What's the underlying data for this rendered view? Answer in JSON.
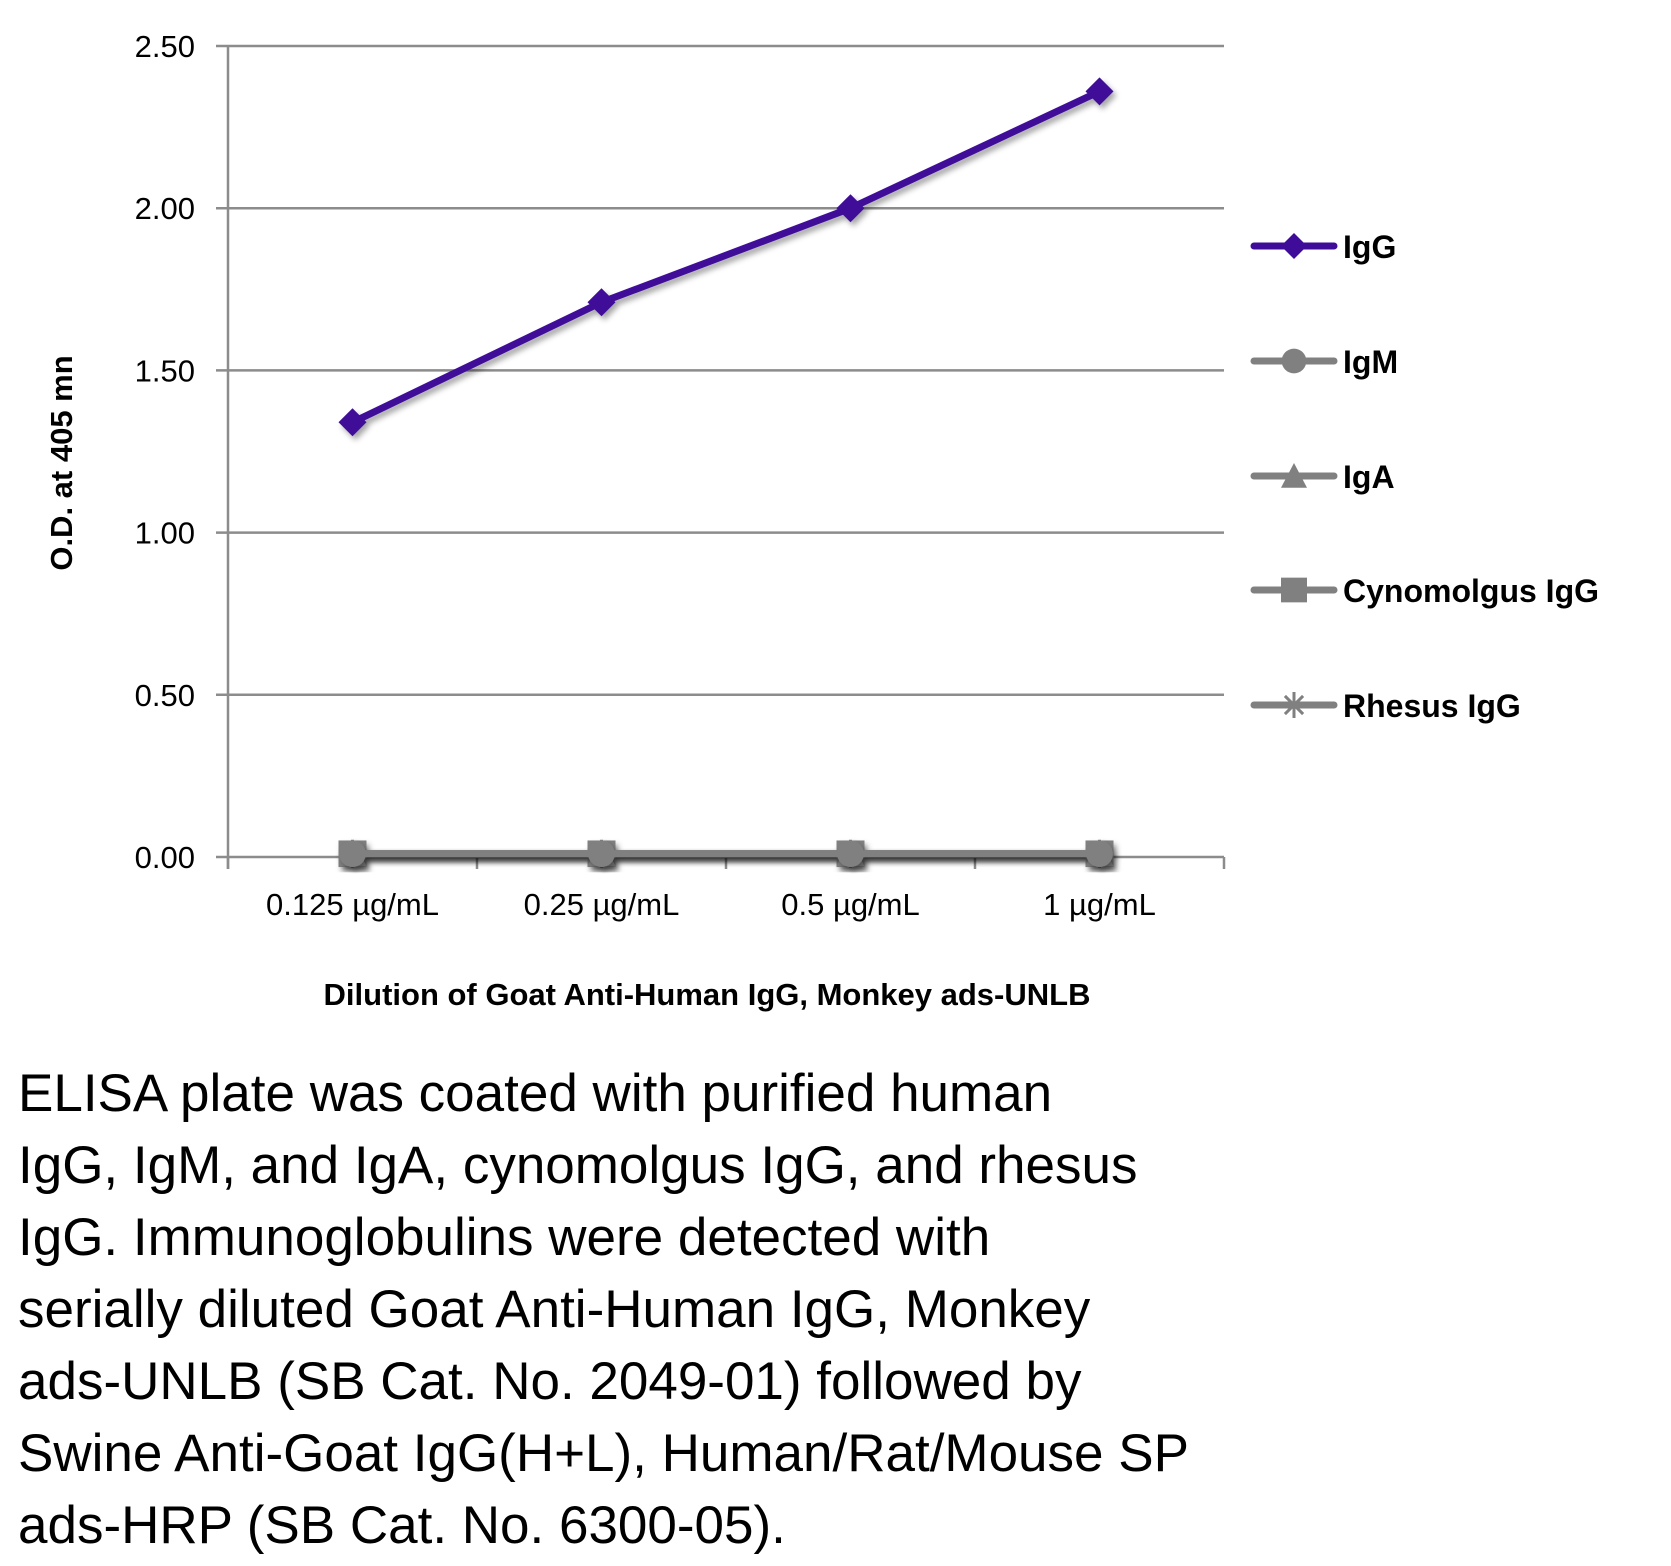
{
  "chart_data": {
    "type": "line",
    "title": "",
    "xlabel": "Dilution of Goat Anti-Human IgG, Monkey ads-UNLB",
    "ylabel": "O.D. at 405 mn",
    "categories": [
      "0.125 µg/mL",
      "0.25 µg/mL",
      "0.5 µg/mL",
      "1 µg/mL"
    ],
    "ylim": [
      0,
      2.5
    ],
    "yticks": [
      "0.00",
      "0.50",
      "1.00",
      "1.50",
      "2.00",
      "2.50"
    ],
    "grid": true,
    "legend_position": "right",
    "series": [
      {
        "name": "IgG",
        "marker": "diamond",
        "color": "#3f0c99",
        "values": [
          1.34,
          1.71,
          2.0,
          2.36
        ]
      },
      {
        "name": "IgM",
        "marker": "circle",
        "color": "#808080",
        "values": [
          0.01,
          0.01,
          0.01,
          0.01
        ]
      },
      {
        "name": "IgA",
        "marker": "triangle",
        "color": "#808080",
        "values": [
          0.01,
          0.01,
          0.01,
          0.01
        ]
      },
      {
        "name": "Cynomolgus IgG",
        "marker": "square",
        "color": "#808080",
        "values": [
          0.01,
          0.01,
          0.01,
          0.01
        ]
      },
      {
        "name": "Rhesus IgG",
        "marker": "asterisk",
        "color": "#808080",
        "values": [
          0.01,
          0.01,
          0.01,
          0.01
        ]
      }
    ]
  },
  "caption": [
    "ELISA plate was coated with purified human",
    "IgG, IgM, and IgA, cynomolgus IgG, and rhesus",
    "IgG.  Immunoglobulins were detected with",
    "serially diluted Goat Anti-Human IgG, Monkey",
    "ads-UNLB (SB Cat. No. 2049-01) followed by",
    "Swine Anti-Goat IgG(H+L), Human/Rat/Mouse SP",
    "ads-HRP (SB Cat. No. 6300-05)."
  ]
}
